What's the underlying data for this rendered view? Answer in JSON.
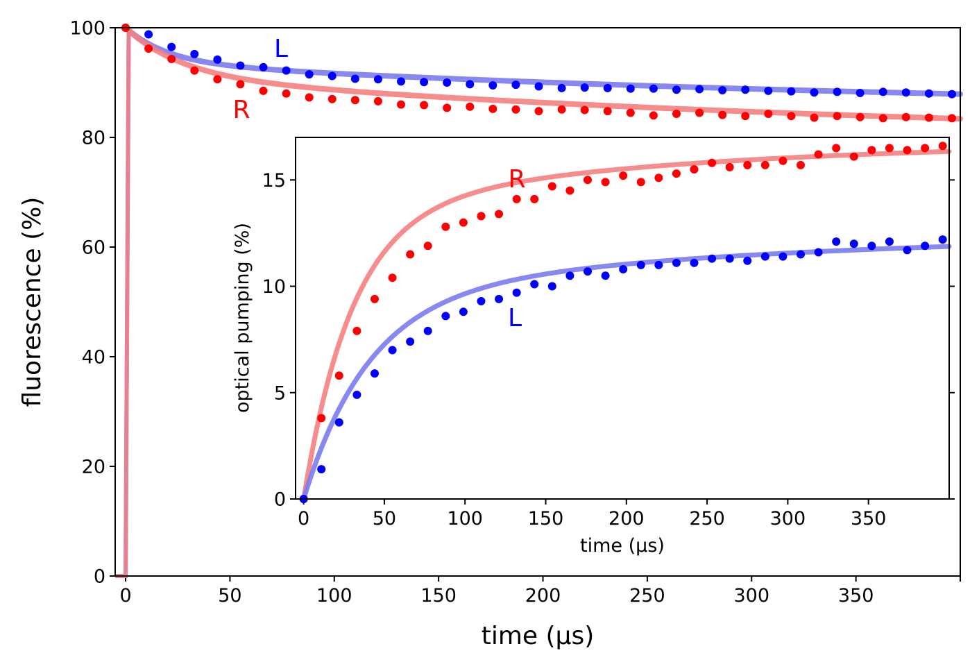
{
  "chart_data": [
    {
      "type": "scatter",
      "title": "",
      "xlabel": "time (µs)",
      "ylabel": "fluorescence (%)",
      "xlim": [
        -5,
        400
      ],
      "ylim": [
        0,
        100
      ],
      "xticks": [
        0,
        50,
        100,
        150,
        200,
        250,
        300,
        350,
        400
      ],
      "xtick_labels": [
        "0",
        "50",
        "100",
        "150",
        "200",
        "250",
        "300",
        "350",
        ""
      ],
      "yticks": [
        0,
        20,
        40,
        60,
        80,
        100
      ],
      "ytick_labels": [
        "0",
        "20",
        "40",
        "60",
        "80",
        "100"
      ],
      "grid": false,
      "annotations": [
        {
          "text": "L",
          "x": 74,
          "y": 96,
          "color": "#0000ff"
        },
        {
          "text": "R",
          "x": 55,
          "y": 84,
          "color": "#ff0000"
        }
      ],
      "series": [
        {
          "name": "L",
          "color": "#0000ff",
          "fit_color": "#7b7bf0",
          "x": [
            0,
            11,
            22,
            33,
            44,
            55,
            66,
            77,
            88,
            99,
            110,
            121,
            132,
            143,
            154,
            165,
            176,
            187,
            198,
            209,
            220,
            231,
            242,
            253,
            264,
            275,
            286,
            297,
            308,
            319,
            330,
            341,
            352,
            363,
            374,
            385,
            396
          ],
          "y": [
            100,
            98.8,
            96.5,
            95.2,
            94.2,
            93.1,
            92.8,
            92.2,
            91.5,
            91.2,
            90.7,
            90.6,
            90.2,
            90.1,
            90.0,
            89.7,
            89.5,
            89.6,
            89.3,
            89.0,
            89.1,
            89.0,
            88.9,
            88.9,
            88.7,
            88.8,
            88.6,
            88.7,
            88.5,
            88.4,
            88.2,
            88.3,
            88.1,
            88.3,
            88.2,
            88.0,
            87.9
          ],
          "fit": {
            "a": 7,
            "tau1": 20,
            "b": 10,
            "tau2": 400,
            "offset": 87.9
          }
        },
        {
          "name": "R",
          "color": "#ff0000",
          "fit_color": "#f58080",
          "x": [
            0,
            11,
            22,
            33,
            44,
            55,
            66,
            77,
            88,
            99,
            110,
            121,
            132,
            143,
            154,
            165,
            176,
            187,
            198,
            209,
            220,
            231,
            242,
            253,
            264,
            275,
            286,
            297,
            308,
            319,
            330,
            341,
            352,
            363,
            374,
            385,
            396
          ],
          "y": [
            100,
            96.2,
            94.3,
            92.2,
            90.6,
            89.7,
            88.5,
            88.0,
            87.3,
            87.0,
            86.8,
            86.6,
            86.0,
            85.9,
            85.4,
            85.6,
            85.2,
            85.1,
            84.8,
            85.1,
            85.0,
            84.8,
            84.5,
            84.0,
            84.3,
            84.5,
            84.1,
            83.9,
            84.3,
            83.9,
            83.6,
            83.9,
            83.7,
            83.5,
            83.7,
            83.6,
            83.5
          ],
          "fit": {
            "a": 10,
            "tau1": 27,
            "b": 14,
            "tau2": 400,
            "offset": 83.4
          }
        }
      ],
      "step": {
        "x_start": 0,
        "x_jump": 1.5,
        "y_before": 0,
        "y_after": 100
      }
    },
    {
      "type": "scatter",
      "title": "",
      "xlabel": "time (µs)",
      "ylabel": "optical pumping (%)",
      "xlim": [
        -5,
        400
      ],
      "ylim": [
        0,
        17
      ],
      "xticks": [
        0,
        50,
        100,
        150,
        200,
        250,
        300,
        350
      ],
      "xtick_labels": [
        "0",
        "50",
        "100",
        "150",
        "200",
        "250",
        "300",
        "350"
      ],
      "yticks": [
        0,
        5,
        10,
        15
      ],
      "ytick_labels": [
        "0",
        "5",
        "10",
        "15"
      ],
      "grid": false,
      "annotations": [
        {
          "text": "R",
          "x": 132,
          "y": 15.1,
          "color": "#ff0000"
        },
        {
          "text": "L",
          "x": 132,
          "y": 8.4,
          "color": "#0000ff"
        }
      ],
      "series": [
        {
          "name": "R",
          "color": "#ff0000",
          "fit_color": "#f58080",
          "x": [
            0,
            11,
            22,
            33,
            44,
            55,
            66,
            77,
            88,
            99,
            110,
            121,
            132,
            143,
            154,
            165,
            176,
            187,
            198,
            209,
            220,
            231,
            242,
            253,
            264,
            275,
            286,
            297,
            308,
            319,
            330,
            341,
            352,
            363,
            374,
            385,
            396
          ],
          "y": [
            0,
            3.8,
            5.8,
            7.9,
            9.4,
            10.4,
            11.5,
            11.9,
            12.8,
            13.0,
            13.3,
            13.4,
            14.1,
            14.1,
            14.7,
            14.5,
            15.0,
            14.9,
            15.2,
            14.9,
            15.1,
            15.3,
            15.5,
            15.8,
            15.6,
            15.7,
            15.7,
            15.9,
            15.7,
            16.2,
            16.5,
            16.1,
            16.4,
            16.5,
            16.4,
            16.5,
            16.6
          ],
          "fit": {
            "a": 13.4,
            "tau1": 30,
            "b": 3.4,
            "tau2": 200
          }
        },
        {
          "name": "L",
          "color": "#0000ff",
          "fit_color": "#7b7bf0",
          "x": [
            0,
            11,
            22,
            33,
            44,
            55,
            66,
            77,
            88,
            99,
            110,
            121,
            132,
            143,
            154,
            165,
            176,
            187,
            198,
            209,
            220,
            231,
            242,
            253,
            264,
            275,
            286,
            297,
            308,
            319,
            330,
            341,
            352,
            363,
            374,
            385,
            396
          ],
          "y": [
            0,
            1.4,
            3.6,
            4.9,
            5.9,
            7.0,
            7.4,
            7.9,
            8.6,
            8.8,
            9.3,
            9.4,
            9.7,
            10.1,
            10.0,
            10.5,
            10.7,
            10.5,
            10.8,
            11.0,
            11.0,
            11.1,
            11.1,
            11.3,
            11.3,
            11.2,
            11.4,
            11.4,
            11.5,
            11.6,
            12.1,
            12.0,
            11.9,
            12.1,
            11.7,
            11.9,
            12.2
          ],
          "fit": {
            "a": 9.4,
            "tau1": 40,
            "b": 3.1,
            "tau2": 250
          }
        }
      ]
    }
  ]
}
